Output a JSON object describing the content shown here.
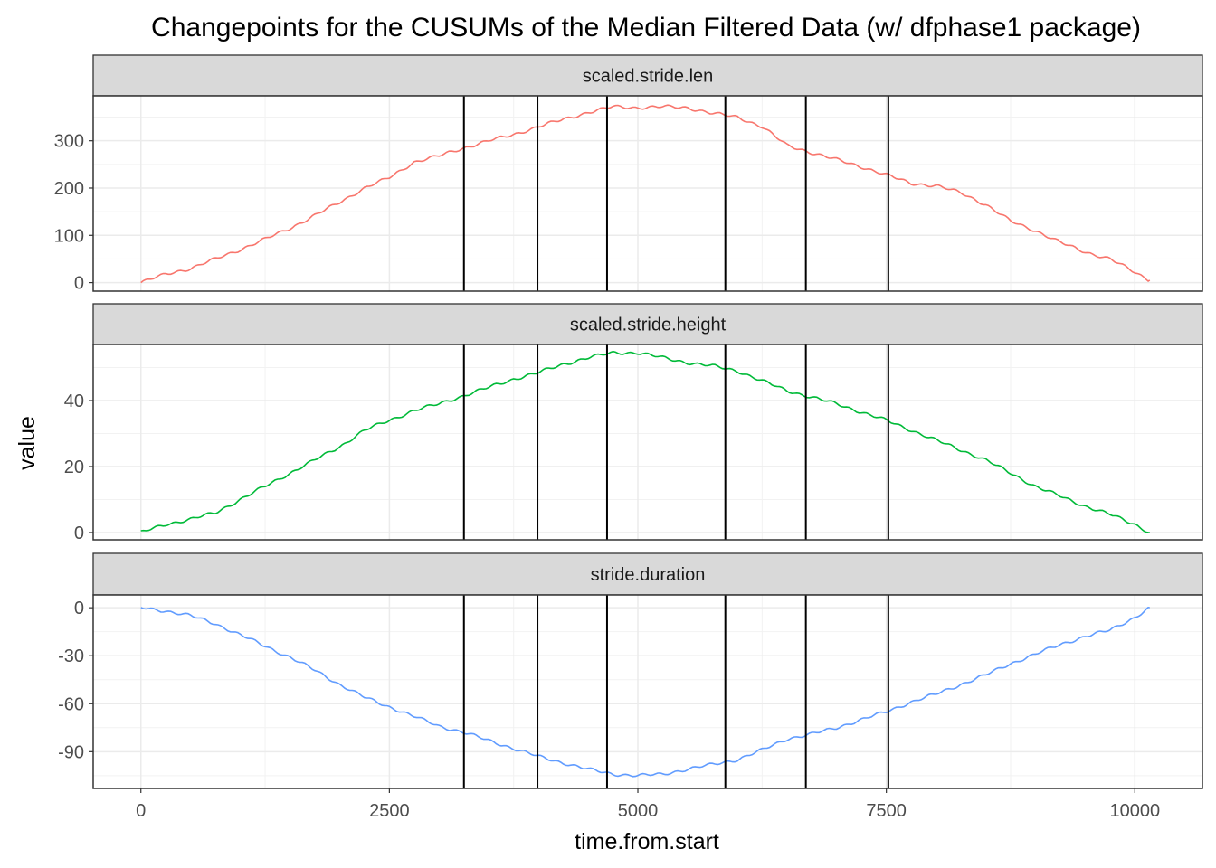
{
  "chart_data": {
    "type": "line",
    "title": "Changepoints for the CUSUMs of the Median Filtered Data (w/ dfphase1 package)",
    "xlabel": "time.from.start",
    "ylabel": "value",
    "xlim": [
      -480,
      10680
    ],
    "x_ticks": [
      0,
      2500,
      5000,
      7500,
      10000
    ],
    "x_tick_labels": [
      "0",
      "2500",
      "5000",
      "7500",
      "10000"
    ],
    "grid": true,
    "legend": "none",
    "changepoints": [
      3250,
      3990,
      4690,
      5880,
      6690,
      7520
    ],
    "panels": [
      {
        "name": "scaled.stride.len",
        "color": "#F8766D",
        "ylim": [
          -18,
          395
        ],
        "y_ticks": [
          0,
          100,
          200,
          300
        ],
        "y_tick_labels": [
          "0",
          "100",
          "200",
          "300"
        ],
        "x": [
          0,
          250,
          500,
          750,
          1000,
          1250,
          1500,
          1750,
          2000,
          2250,
          2500,
          2750,
          3000,
          3250,
          3500,
          3750,
          4000,
          4250,
          4500,
          4750,
          5000,
          5250,
          5500,
          5750,
          6000,
          6250,
          6500,
          6750,
          7000,
          7250,
          7500,
          7750,
          8000,
          8250,
          8500,
          8750,
          9000,
          9250,
          9500,
          9750,
          10000,
          10150
        ],
        "values": [
          0,
          18,
          30,
          50,
          70,
          92,
          115,
          142,
          170,
          200,
          222,
          255,
          268,
          285,
          300,
          313,
          330,
          345,
          360,
          372,
          370,
          372,
          370,
          358,
          350,
          330,
          290,
          275,
          260,
          245,
          228,
          210,
          205,
          190,
          165,
          130,
          110,
          85,
          65,
          50,
          22,
          5
        ]
      },
      {
        "name": "scaled.stride.height",
        "color": "#00BA38",
        "ylim": [
          -2.2,
          57
        ],
        "y_ticks": [
          0,
          20,
          40
        ],
        "y_tick_labels": [
          "0",
          "20",
          "40"
        ],
        "x": [
          0,
          250,
          500,
          750,
          1000,
          1250,
          1500,
          1750,
          2000,
          2250,
          2500,
          2750,
          3000,
          3250,
          3500,
          3750,
          4000,
          4250,
          4500,
          4750,
          5000,
          5250,
          5500,
          5750,
          6000,
          6250,
          6500,
          6750,
          7000,
          7250,
          7500,
          7750,
          8000,
          8250,
          8500,
          8750,
          9000,
          9250,
          9500,
          9750,
          10000,
          10150
        ],
        "values": [
          0,
          2.5,
          4,
          6,
          10,
          14,
          18,
          22,
          26,
          31,
          34,
          37,
          39,
          41.5,
          44,
          46.5,
          48.5,
          51,
          53,
          54.5,
          54.5,
          53,
          51.5,
          50.5,
          49,
          46,
          43,
          41,
          39,
          36.5,
          34,
          31,
          28,
          25,
          22,
          18,
          14,
          11,
          8,
          5.5,
          2.5,
          0
        ]
      },
      {
        "name": "stride.duration",
        "color": "#619CFF",
        "ylim": [
          -113,
          8
        ],
        "y_ticks": [
          0,
          -30,
          -60,
          -90
        ],
        "y_tick_labels": [
          "0",
          "-30",
          "-60",
          "-90"
        ],
        "x": [
          0,
          250,
          500,
          750,
          1000,
          1250,
          1500,
          1750,
          2000,
          2250,
          2500,
          2750,
          3000,
          3250,
          3500,
          3750,
          4000,
          4250,
          4500,
          4750,
          5000,
          5250,
          5500,
          5750,
          6000,
          6250,
          6500,
          6750,
          7000,
          7250,
          7500,
          7750,
          8000,
          8250,
          8500,
          8750,
          9000,
          9250,
          9500,
          9750,
          10000,
          10150
        ],
        "values": [
          0,
          -2,
          -5,
          -10,
          -17,
          -24,
          -31,
          -39,
          -48,
          -56,
          -62,
          -68,
          -74,
          -78,
          -83,
          -88,
          -93,
          -97,
          -101,
          -104,
          -105,
          -104,
          -101,
          -98,
          -95,
          -89,
          -82,
          -79,
          -75,
          -70,
          -65,
          -59,
          -54,
          -48,
          -42,
          -35,
          -29,
          -23,
          -18,
          -14,
          -6,
          0
        ]
      }
    ]
  }
}
